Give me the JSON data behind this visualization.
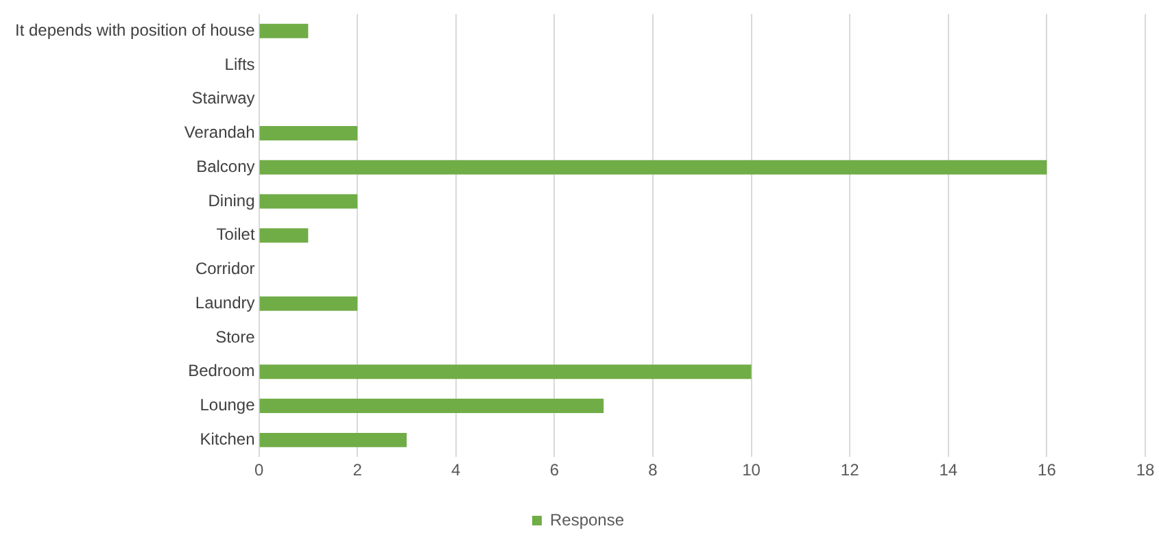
{
  "chart_data": {
    "type": "bar",
    "orientation": "horizontal",
    "categories": [
      "It depends with position of house",
      "Lifts",
      "Stairway",
      "Verandah",
      "Balcony",
      "Dining",
      "Toilet",
      "Corridor",
      "Laundry",
      "Store",
      "Bedroom",
      "Lounge",
      "Kitchen"
    ],
    "series": [
      {
        "name": "Response",
        "color": "#70ad47",
        "values": [
          1,
          0,
          0,
          2,
          16,
          2,
          1,
          0,
          2,
          0,
          10,
          7,
          3
        ]
      }
    ],
    "xlim": [
      0,
      18
    ],
    "xticks": [
      0,
      2,
      4,
      6,
      8,
      10,
      12,
      14,
      16,
      18
    ],
    "grid": "x",
    "legend": "bottom"
  }
}
